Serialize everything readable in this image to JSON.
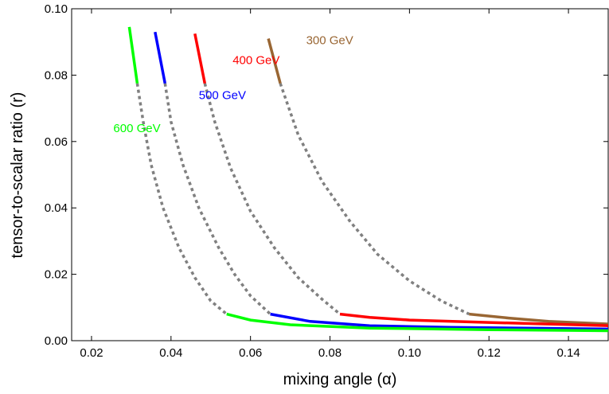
{
  "chart_data": {
    "type": "line",
    "title": "",
    "xlabel": "mixing angle (α)",
    "ylabel": "tensor-to-scalar ratio (r)",
    "xlim": [
      0.015,
      0.15
    ],
    "ylim": [
      0.0,
      0.1
    ],
    "x_ticks": [
      0.02,
      0.04,
      0.06,
      0.08,
      0.1,
      0.12,
      0.14
    ],
    "x_tick_labels": [
      "0.02",
      "0.04",
      "0.06",
      "0.08",
      "0.10",
      "0.12",
      "0.14"
    ],
    "y_ticks": [
      0.0,
      0.02,
      0.04,
      0.06,
      0.08,
      0.1
    ],
    "y_tick_labels": [
      "0.00",
      "0.02",
      "0.04",
      "0.06",
      "0.08",
      "0.10"
    ],
    "grid": false,
    "legend": "inline labels",
    "dash_color": "#808080",
    "series": [
      {
        "name": "300 GeV",
        "color": "#996633",
        "upper_solid": [
          [
            0.0645,
            0.091
          ],
          [
            0.0675,
            0.0775
          ]
        ],
        "dashed": [
          [
            0.0675,
            0.0775
          ],
          [
            0.072,
            0.062
          ],
          [
            0.078,
            0.048
          ],
          [
            0.085,
            0.036
          ],
          [
            0.092,
            0.026
          ],
          [
            0.1,
            0.018
          ],
          [
            0.108,
            0.012
          ],
          [
            0.115,
            0.008
          ]
        ],
        "lower_solid": [
          [
            0.115,
            0.008
          ],
          [
            0.125,
            0.0068
          ],
          [
            0.135,
            0.0058
          ],
          [
            0.15,
            0.005
          ]
        ]
      },
      {
        "name": "400 GeV",
        "color": "#ff0000",
        "upper_solid": [
          [
            0.046,
            0.0925
          ],
          [
            0.0485,
            0.0775
          ]
        ],
        "dashed": [
          [
            0.0485,
            0.0775
          ],
          [
            0.051,
            0.066
          ],
          [
            0.055,
            0.052
          ],
          [
            0.06,
            0.039
          ],
          [
            0.066,
            0.028
          ],
          [
            0.072,
            0.019
          ],
          [
            0.078,
            0.0125
          ],
          [
            0.0825,
            0.008
          ]
        ],
        "lower_solid": [
          [
            0.0825,
            0.008
          ],
          [
            0.09,
            0.007
          ],
          [
            0.1,
            0.0062
          ],
          [
            0.12,
            0.0055
          ],
          [
            0.15,
            0.0045
          ]
        ]
      },
      {
        "name": "500 GeV",
        "color": "#0000ff",
        "upper_solid": [
          [
            0.036,
            0.093
          ],
          [
            0.0385,
            0.0775
          ]
        ],
        "dashed": [
          [
            0.0385,
            0.0775
          ],
          [
            0.04,
            0.066
          ],
          [
            0.043,
            0.053
          ],
          [
            0.047,
            0.04
          ],
          [
            0.052,
            0.028
          ],
          [
            0.056,
            0.02
          ],
          [
            0.06,
            0.0135
          ],
          [
            0.065,
            0.008
          ]
        ],
        "lower_solid": [
          [
            0.065,
            0.008
          ],
          [
            0.075,
            0.0058
          ],
          [
            0.09,
            0.0045
          ],
          [
            0.11,
            0.004
          ],
          [
            0.15,
            0.0035
          ]
        ]
      },
      {
        "name": "600 GeV",
        "color": "#00ff00",
        "upper_solid": [
          [
            0.0295,
            0.0945
          ],
          [
            0.0315,
            0.0775
          ]
        ],
        "dashed": [
          [
            0.0315,
            0.0775
          ],
          [
            0.033,
            0.066
          ],
          [
            0.035,
            0.053
          ],
          [
            0.038,
            0.04
          ],
          [
            0.042,
            0.028
          ],
          [
            0.046,
            0.019
          ],
          [
            0.05,
            0.012
          ],
          [
            0.054,
            0.008
          ]
        ],
        "lower_solid": [
          [
            0.054,
            0.008
          ],
          [
            0.06,
            0.0062
          ],
          [
            0.07,
            0.0048
          ],
          [
            0.09,
            0.0038
          ],
          [
            0.12,
            0.0033
          ],
          [
            0.15,
            0.003
          ]
        ]
      }
    ],
    "annotations": [
      {
        "text": "300 GeV",
        "series": 0,
        "x": 0.074,
        "y": 0.0905
      },
      {
        "text": "400 GeV",
        "series": 1,
        "x": 0.0555,
        "y": 0.0845
      },
      {
        "text": "500 GeV",
        "series": 2,
        "x": 0.047,
        "y": 0.074
      },
      {
        "text": "600 GeV",
        "series": 3,
        "x": 0.0255,
        "y": 0.064
      }
    ]
  }
}
